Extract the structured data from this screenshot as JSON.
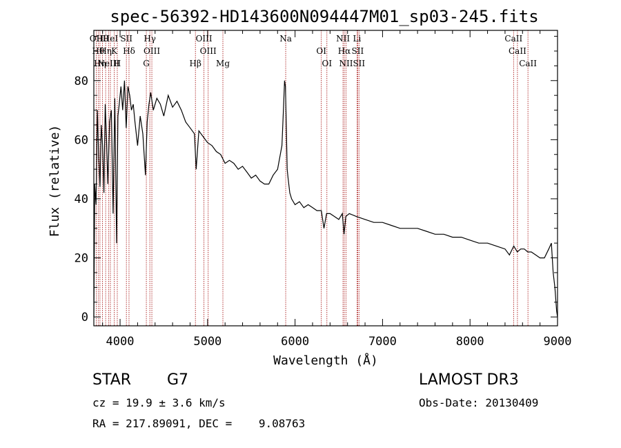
{
  "chart_data": {
    "type": "line",
    "title": "spec-56392-HD143600N094447M01_sp03-245.fits",
    "xlabel": "Wavelength (Å)",
    "ylabel": "Flux (relative)",
    "xlim": [
      3700,
      9000
    ],
    "ylim": [
      -3,
      97
    ],
    "x_ticks": [
      "4000",
      "5000",
      "6000",
      "7000",
      "8000",
      "9000"
    ],
    "y_ticks": [
      "0",
      "20",
      "40",
      "60",
      "80"
    ],
    "grid": false,
    "series": [
      {
        "x": [
          3700,
          3710,
          3725,
          3740,
          3755,
          3770,
          3785,
          3800,
          3815,
          3830,
          3845,
          3860,
          3880,
          3900,
          3920,
          3940,
          3960,
          3975,
          3990,
          4010,
          4030,
          4050,
          4070,
          4090,
          4110,
          4130,
          4150,
          4170,
          4200,
          4230,
          4260,
          4290,
          4310,
          4330,
          4350,
          4380,
          4420,
          4460,
          4500,
          4550,
          4600,
          4650,
          4700,
          4750,
          4800,
          4850,
          4870,
          4900,
          4950,
          5000,
          5050,
          5100,
          5150,
          5200,
          5250,
          5300,
          5350,
          5400,
          5450,
          5500,
          5550,
          5600,
          5650,
          5700,
          5750,
          5800,
          5850,
          5870,
          5880,
          5890,
          5900,
          5910,
          5920,
          5940,
          5960,
          6000,
          6050,
          6100,
          6150,
          6200,
          6250,
          6300,
          6330,
          6360,
          6400,
          6450,
          6500,
          6540,
          6560,
          6580,
          6620,
          6700,
          6800,
          6900,
          7000,
          7100,
          7200,
          7300,
          7400,
          7500,
          7600,
          7700,
          7800,
          7900,
          8000,
          8100,
          8200,
          8300,
          8400,
          8450,
          8500,
          8540,
          8580,
          8620,
          8660,
          8700,
          8750,
          8800,
          8850,
          8900,
          8930,
          8950,
          8970,
          8990,
          9000
        ],
        "y": [
          0,
          45,
          38,
          70,
          55,
          44,
          65,
          58,
          42,
          72,
          60,
          45,
          66,
          70,
          35,
          74,
          25,
          68,
          72,
          78,
          70,
          80,
          64,
          78,
          75,
          70,
          72,
          66,
          58,
          68,
          62,
          48,
          66,
          72,
          76,
          70,
          74,
          72,
          68,
          75,
          71,
          73,
          70,
          66,
          64,
          62,
          50,
          63,
          61,
          59,
          58,
          56,
          55,
          52,
          53,
          52,
          50,
          51,
          49,
          47,
          48,
          46,
          45,
          45,
          48,
          50,
          58,
          72,
          80,
          78,
          65,
          50,
          47,
          42,
          40,
          38,
          39,
          37,
          38,
          37,
          36,
          36,
          30,
          35,
          35,
          34,
          33,
          35,
          28,
          34,
          35,
          34,
          33,
          32,
          32,
          31,
          30,
          30,
          30,
          29,
          28,
          28,
          27,
          27,
          26,
          25,
          25,
          24,
          23,
          21,
          24,
          22,
          23,
          23,
          22,
          22,
          21,
          20,
          20,
          23,
          25,
          15,
          10,
          2,
          0
        ]
      }
    ],
    "spectral_lines": [
      {
        "w": 3727,
        "label": "OII"
      },
      {
        "w": 3750,
        "label": "Hθ"
      },
      {
        "w": 3770,
        "label": "Hη"
      },
      {
        "w": 3798,
        "label": "Hθ"
      },
      {
        "w": 3835,
        "label": "Hη"
      },
      {
        "w": 3868,
        "label": "NeIII"
      },
      {
        "w": 3889,
        "label": "HeI"
      },
      {
        "w": 3934,
        "label": "K"
      },
      {
        "w": 3968,
        "label": "H"
      },
      {
        "w": 4072,
        "label": "SII"
      },
      {
        "w": 4102,
        "label": "Hδ"
      },
      {
        "w": 4300,
        "label": "G"
      },
      {
        "w": 4340,
        "label": "Hγ"
      },
      {
        "w": 4363,
        "label": "OIII"
      },
      {
        "w": 4861,
        "label": "Hβ"
      },
      {
        "w": 4959,
        "label": "OIII"
      },
      {
        "w": 5007,
        "label": "OIII"
      },
      {
        "w": 5175,
        "label": "Mg"
      },
      {
        "w": 5893,
        "label": "Na"
      },
      {
        "w": 6300,
        "label": "OI"
      },
      {
        "w": 6364,
        "label": "OI"
      },
      {
        "w": 6548,
        "label": "NII"
      },
      {
        "w": 6563,
        "label": "Hα"
      },
      {
        "w": 6583,
        "label": "NII"
      },
      {
        "w": 6708,
        "label": "Li"
      },
      {
        "w": 6716,
        "label": "SII"
      },
      {
        "w": 6731,
        "label": "SII"
      },
      {
        "w": 8498,
        "label": "CaII"
      },
      {
        "w": 8542,
        "label": "CaII"
      },
      {
        "w": 8662,
        "label": "CaII"
      }
    ],
    "colors": {
      "spectrum": "#000000",
      "line_markers": "#a00000"
    }
  },
  "info": {
    "class": "STAR",
    "subclass": "G7",
    "survey": "LAMOST DR3",
    "cz": "cz = 19.9 ± 3.6 km/s",
    "obs_date": "Obs-Date: 20130409",
    "radec": "RA = 217.89091, DEC =    9.08763"
  }
}
